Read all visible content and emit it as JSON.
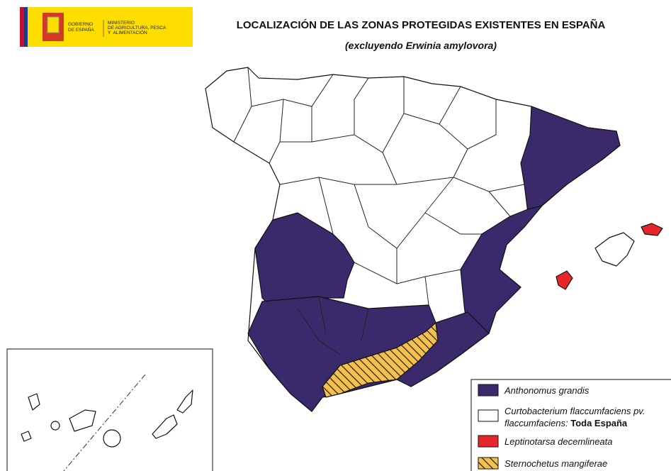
{
  "header": {
    "logo": {
      "government": [
        "GOBIERNO",
        "DE ESPAÑA"
      ],
      "ministry": [
        "MINISTERIO",
        "DE AGRICULTURA, PESCA",
        "Y  ALIMENTACIÓN"
      ]
    },
    "title": "LOCALIZACIÓN DE LAS ZONAS PROTEGIDAS EXISTENTES EN ESPAÑA",
    "subtitle": "(excluyendo Erwinia amylovora)"
  },
  "legend": {
    "items": [
      {
        "label": "Anthonomus grandis",
        "color": "#3a2a6c"
      },
      {
        "label": [
          "Curtobacterium flaccumfaciens pv.",
          "flaccumfaciens:",
          "Toda España"
        ],
        "color": "#ffffff"
      },
      {
        "label": "Leptinotarsa decemlineata",
        "color": "#e8262a"
      },
      {
        "label": "Sternochetus mangiferae",
        "color": "#f6c04c"
      }
    ]
  }
}
